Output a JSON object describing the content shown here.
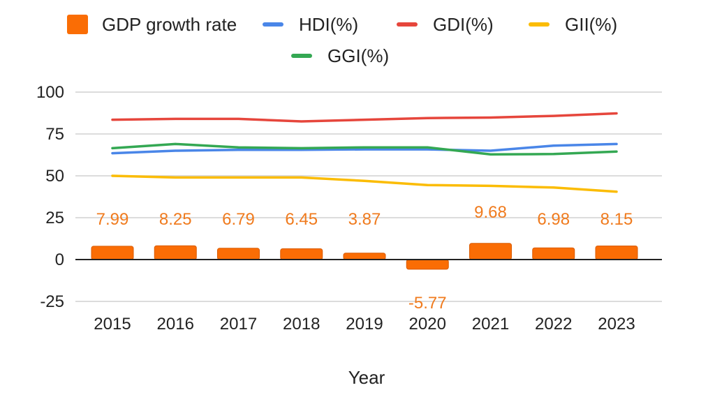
{
  "chart_data": {
    "type": "bar",
    "title": "",
    "xlabel": "Year",
    "ylabel": "",
    "ylim": [
      -25,
      100
    ],
    "yticks": [
      100,
      75,
      50,
      25,
      0,
      -25
    ],
    "ytick_labels": [
      "100",
      "75",
      "50",
      "25",
      "0",
      "-25"
    ],
    "grid": true,
    "legend_position": "top",
    "categories": [
      "2015",
      "2016",
      "2017",
      "2018",
      "2019",
      "2020",
      "2021",
      "2022",
      "2023"
    ],
    "series": [
      {
        "name": "GDP growth rate",
        "kind": "bar",
        "color": "#fa6d05",
        "values": [
          7.99,
          8.25,
          6.79,
          6.45,
          3.87,
          -5.77,
          9.68,
          6.98,
          8.15
        ],
        "labels": [
          "7.99",
          "8.25",
          "6.79",
          "6.45",
          "3.87",
          "-5.77",
          "9.68",
          "6.98",
          "8.15"
        ]
      },
      {
        "name": "HDI(%)",
        "kind": "line",
        "color": "#4a86e8",
        "values": [
          63.5,
          65,
          65.5,
          65.5,
          65.8,
          65.8,
          65,
          68,
          69
        ]
      },
      {
        "name": "GDI(%)",
        "kind": "line",
        "color": "#e6463c",
        "values": [
          83.5,
          84,
          84,
          82.5,
          83.5,
          84.5,
          84.8,
          85.8,
          87.3
        ]
      },
      {
        "name": "GII(%)",
        "kind": "line",
        "color": "#fbbc04",
        "values": [
          50,
          49,
          49,
          49,
          47,
          44.5,
          44,
          43,
          40.5
        ]
      },
      {
        "name": "GGI(%)",
        "kind": "line",
        "color": "#34a853",
        "values": [
          66.5,
          69,
          67,
          66.5,
          67,
          67,
          62.8,
          63,
          64.5
        ]
      }
    ]
  }
}
